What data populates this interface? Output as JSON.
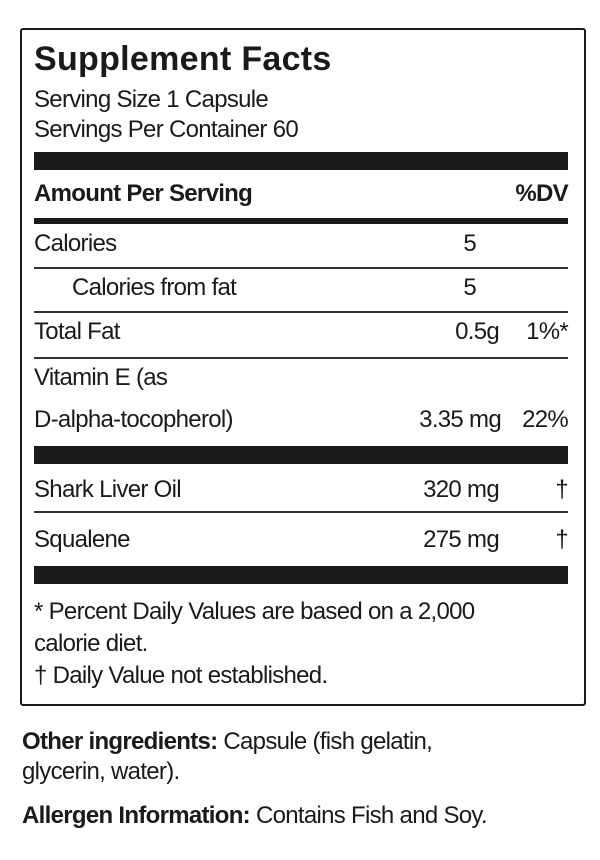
{
  "title": "Supplement Facts",
  "serving_size": "Serving Size 1 Capsule",
  "servings_per_container": "Servings Per Container 60",
  "header": {
    "amount": "Amount Per Serving",
    "dv": "%DV"
  },
  "rows": [
    {
      "name": "Calories",
      "amount": "5",
      "dv": ""
    },
    {
      "name": "Calories from fat",
      "amount": "5",
      "dv": ""
    },
    {
      "name": "Total Fat",
      "amount": "0.5g",
      "dv": "1%*"
    },
    {
      "name_line1": "Vitamin E (as",
      "name_line2": "D-alpha-tocopherol)",
      "amount": "3.35 mg",
      "dv": "22%"
    },
    {
      "name": "Shark Liver Oil",
      "amount": "320 mg",
      "dv": "†"
    },
    {
      "name": "Squalene",
      "amount": "275 mg",
      "dv": "†"
    }
  ],
  "footnotes": {
    "line1": "* Percent Daily Values are based on a 2,000",
    "line2": "calorie diet.",
    "line3": "† Daily Value not established."
  },
  "other_ingredients": {
    "label": "Other ingredients:",
    "text_line1": " Capsule (fish gelatin,",
    "text_line2": "glycerin, water)."
  },
  "allergen": {
    "label": "Allergen Information:",
    "text": " Contains Fish and Soy."
  }
}
